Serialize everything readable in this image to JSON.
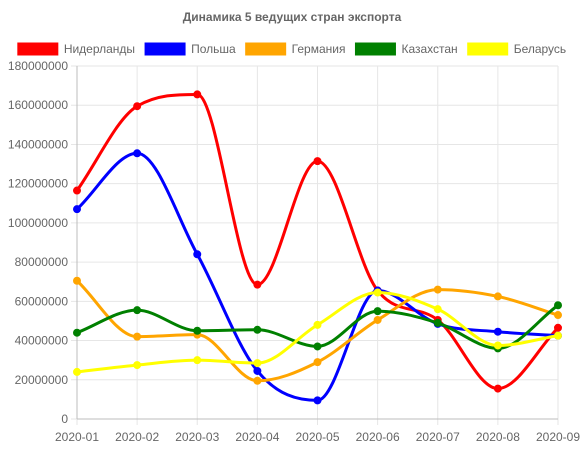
{
  "chart_data": {
    "type": "line",
    "title": "Динамика 5 ведущих стран экспорта",
    "categories": [
      "2020-01",
      "2020-02",
      "2020-03",
      "2020-04",
      "2020-05",
      "2020-06",
      "2020-07",
      "2020-08",
      "2020-09"
    ],
    "ylim": [
      0,
      180000000
    ],
    "yticks": [
      0,
      20000000,
      40000000,
      60000000,
      80000000,
      100000000,
      120000000,
      140000000,
      160000000,
      180000000
    ],
    "grid": true,
    "legend_position": "top",
    "series": [
      {
        "name": "Нидерланды",
        "color": "#ff0000",
        "values": [
          116500000,
          159500000,
          165500000,
          68500000,
          131500000,
          65500000,
          50500000,
          15500000,
          46500000
        ]
      },
      {
        "name": "Польша",
        "color": "#0000ff",
        "values": [
          107000000,
          135500000,
          84000000,
          24500000,
          9500000,
          65500000,
          48500000,
          44500000,
          42500000
        ]
      },
      {
        "name": "Германия",
        "color": "#ffa500",
        "values": [
          70500000,
          42000000,
          43000000,
          19500000,
          29000000,
          50500000,
          66000000,
          62500000,
          53000000
        ]
      },
      {
        "name": "Казахстан",
        "color": "#008000",
        "values": [
          44000000,
          55500000,
          45000000,
          45500000,
          37000000,
          55000000,
          49000000,
          36000000,
          58000000
        ]
      },
      {
        "name": "Беларусь",
        "color": "#ffff00",
        "values": [
          24000000,
          27500000,
          30000000,
          28500000,
          48000000,
          64500000,
          56000000,
          37500000,
          42500000
        ]
      }
    ]
  }
}
